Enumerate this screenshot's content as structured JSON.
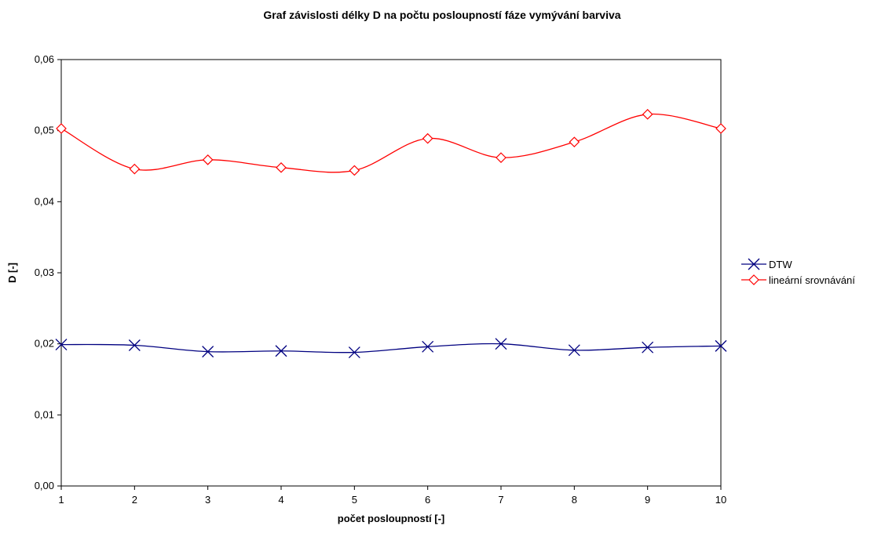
{
  "chart_data": {
    "type": "line",
    "title": "Graf závislosti délky D na počtu posloupností fáze vymývání barviva",
    "xlabel": "počet posloupností [-]",
    "ylabel": "D [-]",
    "x": [
      1,
      2,
      3,
      4,
      5,
      6,
      7,
      8,
      9,
      10
    ],
    "x_tick_labels": [
      "1",
      "2",
      "3",
      "4",
      "5",
      "6",
      "7",
      "8",
      "9",
      "10"
    ],
    "xlim": [
      1,
      10
    ],
    "ylim": [
      0,
      0.06
    ],
    "y_ticks": [
      0,
      0.01,
      0.02,
      0.03,
      0.04,
      0.05,
      0.06
    ],
    "y_tick_labels": [
      "0,00",
      "0,01",
      "0,02",
      "0,03",
      "0,04",
      "0,05",
      "0,06"
    ],
    "grid": false,
    "smoothed": true,
    "legend_position": "right",
    "series": [
      {
        "name": "DTW",
        "color": "#000080",
        "marker": "x",
        "values": [
          0.0199,
          0.0198,
          0.0189,
          0.019,
          0.0188,
          0.0196,
          0.02,
          0.0191,
          0.0195,
          0.0197
        ]
      },
      {
        "name": "lineární srovnávání",
        "color": "#ff0000",
        "marker": "diamond",
        "values": [
          0.0503,
          0.0446,
          0.0459,
          0.0448,
          0.0444,
          0.0489,
          0.0462,
          0.0484,
          0.0523,
          0.0503
        ]
      }
    ]
  }
}
